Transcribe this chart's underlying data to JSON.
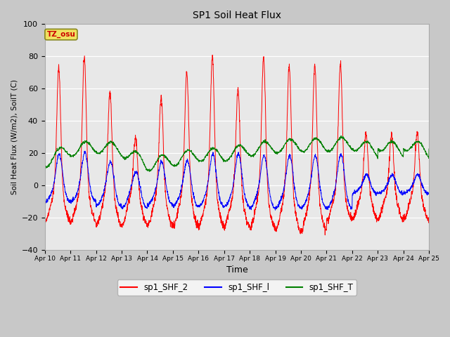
{
  "title": "SP1 Soil Heat Flux",
  "xlabel": "Time",
  "ylabel": "Soil Heat Flux (W/m2), SoilT (C)",
  "ylim": [
    -40,
    100
  ],
  "yticks": [
    -40,
    -20,
    0,
    20,
    40,
    60,
    80,
    100
  ],
  "x_tick_labels": [
    "Apr 10",
    "Apr 11",
    "Apr 12",
    "Apr 13",
    "Apr 14",
    "Apr 15",
    "Apr 16",
    "Apr 17",
    "Apr 18",
    "Apr 19",
    "Apr 20",
    "Apr 21",
    "Apr 22",
    "Apr 23",
    "Apr 24",
    "Apr 25"
  ],
  "legend_labels": [
    "sp1_SHF_2",
    "sp1_SHF_l",
    "sp1_SHF_T"
  ],
  "tz_label": "TZ_osu",
  "red_day_peaks": [
    73,
    80,
    58,
    30,
    56,
    71,
    80,
    60,
    80,
    75,
    75,
    76,
    33
  ],
  "red_night_mins": [
    -22,
    -22,
    -25,
    -25,
    -25,
    -25,
    -25,
    -25,
    -26,
    -28,
    -28,
    -21,
    -21
  ],
  "blue_day_peaks": [
    20,
    21,
    15,
    9,
    15,
    16,
    20,
    20,
    19,
    19,
    19,
    20,
    7
  ],
  "blue_night_mins": [
    -10,
    -10,
    -13,
    -14,
    -12,
    -13,
    -13,
    -13,
    -14,
    -14,
    -14,
    -14,
    -5
  ],
  "green_vals": [
    15,
    22,
    24,
    22,
    13,
    16,
    19,
    19,
    22,
    24,
    25,
    25,
    26,
    21,
    19
  ]
}
